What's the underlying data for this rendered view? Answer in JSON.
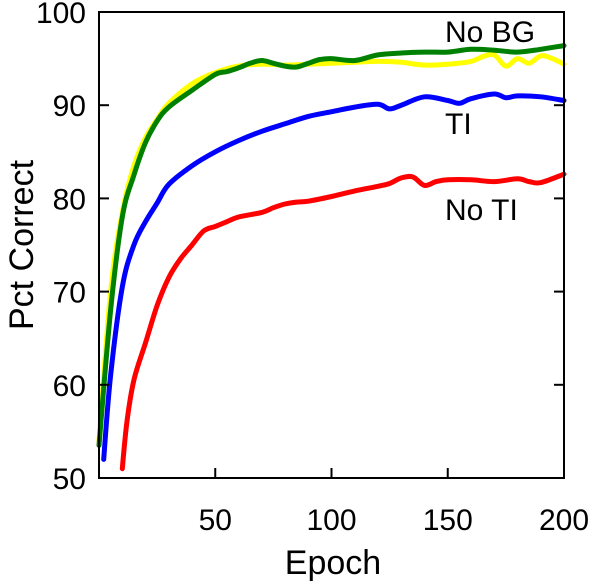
{
  "chart_data": {
    "type": "line",
    "xlabel": "Epoch",
    "ylabel": "Pct Correct",
    "xlim": [
      0,
      200
    ],
    "ylim": [
      50,
      100
    ],
    "grid": false,
    "x_ticks": [
      50,
      100,
      150,
      200
    ],
    "y_ticks": [
      50,
      60,
      70,
      80,
      90,
      100
    ],
    "series": [
      {
        "name": "",
        "color": "#ffff00",
        "x": [
          0,
          5,
          10,
          15,
          20,
          25,
          30,
          40,
          50,
          60,
          70,
          80,
          90,
          100,
          110,
          120,
          130,
          140,
          150,
          160,
          165,
          170,
          175,
          180,
          185,
          190,
          195,
          200
        ],
        "y": [
          54,
          70,
          78.5,
          83.5,
          86.5,
          88.5,
          90.2,
          92.3,
          93.5,
          94.2,
          94.4,
          94.3,
          94.4,
          94.5,
          94.6,
          94.7,
          94.6,
          94.3,
          94.4,
          94.7,
          95.2,
          95.4,
          94.2,
          95,
          94.5,
          95.3,
          95,
          94.4
        ]
      },
      {
        "name": "No BG",
        "color": "#008000",
        "x": [
          0,
          5,
          10,
          15,
          20,
          25,
          30,
          40,
          50,
          55,
          60,
          65,
          70,
          75,
          80,
          85,
          90,
          95,
          100,
          110,
          120,
          130,
          140,
          150,
          160,
          170,
          180,
          190,
          200
        ],
        "y": [
          53.5,
          68,
          78,
          82.5,
          86,
          88.3,
          89.8,
          91.6,
          93.3,
          93.6,
          94,
          94.5,
          94.8,
          94.5,
          94.2,
          94.1,
          94.5,
          94.9,
          95,
          94.8,
          95.4,
          95.6,
          95.7,
          95.7,
          96,
          95.9,
          95.7,
          96,
          96.4
        ]
      },
      {
        "name": "TI",
        "color": "#0000ff",
        "x": [
          2,
          5,
          10,
          15,
          20,
          25,
          30,
          40,
          50,
          60,
          70,
          80,
          90,
          100,
          110,
          120,
          125,
          130,
          140,
          150,
          155,
          160,
          170,
          175,
          180,
          190,
          200
        ],
        "y": [
          52,
          61,
          70.5,
          75,
          77.5,
          79.5,
          81.5,
          83.5,
          85,
          86.2,
          87.2,
          88,
          88.8,
          89.3,
          89.8,
          90.1,
          89.6,
          90,
          90.9,
          90.5,
          90.2,
          90.7,
          91.2,
          90.8,
          91,
          90.9,
          90.5
        ]
      },
      {
        "name": "No TI",
        "color": "#ff0000",
        "x": [
          10,
          12,
          15,
          20,
          25,
          30,
          35,
          40,
          45,
          50,
          55,
          60,
          70,
          75,
          80,
          85,
          90,
          100,
          110,
          120,
          125,
          130,
          135,
          140,
          145,
          150,
          160,
          170,
          180,
          185,
          190,
          200
        ],
        "y": [
          51,
          56,
          60.5,
          64.5,
          68.5,
          71.5,
          73.5,
          75,
          76.5,
          77,
          77.5,
          78,
          78.5,
          79,
          79.4,
          79.6,
          79.7,
          80.2,
          80.8,
          81.3,
          81.6,
          82.2,
          82.3,
          81.4,
          81.8,
          82,
          82,
          81.8,
          82.1,
          81.8,
          81.7,
          82.6
        ]
      }
    ],
    "annotations": [
      "No BG",
      "TI",
      "No TI"
    ]
  }
}
